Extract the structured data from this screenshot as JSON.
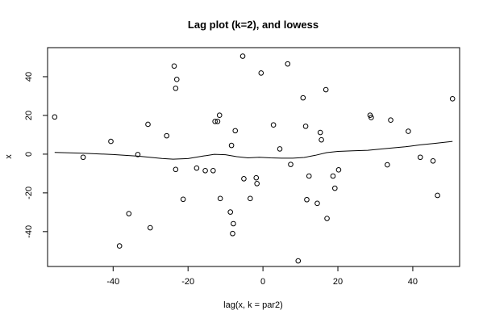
{
  "chart_data": {
    "type": "scatter",
    "title": "Lag plot (k=2), and lowess",
    "xlabel": "lag(x, k = par2)",
    "ylabel": "x",
    "xlim": [
      -57.5,
      52.5
    ],
    "ylim": [
      -58,
      55
    ],
    "xticks": [
      -40,
      -20,
      0,
      20,
      40
    ],
    "yticks": [
      -40,
      -20,
      0,
      20,
      40
    ],
    "points": [
      [
        -55.6,
        19.2
      ],
      [
        -48.0,
        -1.6
      ],
      [
        -40.6,
        6.6
      ],
      [
        -38.3,
        -47.4
      ],
      [
        -35.8,
        -30.7
      ],
      [
        -33.4,
        -0.2
      ],
      [
        -30.7,
        15.4
      ],
      [
        -30.1,
        -38.0
      ],
      [
        -25.7,
        9.5
      ],
      [
        -23.7,
        45.5
      ],
      [
        -23.3,
        34.0
      ],
      [
        -23.3,
        -7.9
      ],
      [
        -23.0,
        38.6
      ],
      [
        -21.3,
        -23.3
      ],
      [
        -17.7,
        -7.2
      ],
      [
        -15.4,
        -8.5
      ],
      [
        -13.3,
        -8.5
      ],
      [
        -12.8,
        16.9
      ],
      [
        -12.1,
        16.9
      ],
      [
        -11.6,
        20.1
      ],
      [
        -11.4,
        -22.9
      ],
      [
        -8.7,
        -29.9
      ],
      [
        -8.4,
        4.5
      ],
      [
        -8.1,
        -41.0
      ],
      [
        -7.9,
        -35.9
      ],
      [
        -7.4,
        12.1
      ],
      [
        -5.4,
        50.6
      ],
      [
        -5.1,
        -12.7
      ],
      [
        -3.4,
        -22.9
      ],
      [
        -1.8,
        -12.2
      ],
      [
        -1.6,
        -15.2
      ],
      [
        -0.5,
        41.9
      ],
      [
        2.8,
        15.1
      ],
      [
        4.5,
        2.7
      ],
      [
        6.6,
        46.6
      ],
      [
        7.4,
        -5.3
      ],
      [
        9.4,
        -55.1
      ],
      [
        10.7,
        29.1
      ],
      [
        11.4,
        14.4
      ],
      [
        11.7,
        -23.5
      ],
      [
        12.3,
        -11.3
      ],
      [
        14.5,
        -25.4
      ],
      [
        15.3,
        11.2
      ],
      [
        15.6,
        7.4
      ],
      [
        16.8,
        33.3
      ],
      [
        17.1,
        -33.2
      ],
      [
        18.7,
        -11.3
      ],
      [
        19.2,
        -17.6
      ],
      [
        20.2,
        -8.1
      ],
      [
        28.6,
        20.1
      ],
      [
        28.9,
        18.9
      ],
      [
        33.2,
        -5.5
      ],
      [
        34.1,
        17.6
      ],
      [
        38.8,
        11.8
      ],
      [
        42.0,
        -1.6
      ],
      [
        45.4,
        -3.5
      ],
      [
        46.6,
        -21.3
      ],
      [
        50.6,
        28.6
      ]
    ],
    "lowess": [
      [
        -55.6,
        0.9
      ],
      [
        -48.0,
        0.5
      ],
      [
        -40.0,
        -0.2
      ],
      [
        -33.0,
        -1.1
      ],
      [
        -27.0,
        -2.2
      ],
      [
        -24.0,
        -2.6
      ],
      [
        -20.0,
        -2.3
      ],
      [
        -16.0,
        -1.0
      ],
      [
        -13.0,
        -0.1
      ],
      [
        -10.0,
        -0.3
      ],
      [
        -7.0,
        -1.3
      ],
      [
        -4.0,
        -1.9
      ],
      [
        -1.0,
        -1.6
      ],
      [
        2.0,
        -1.9
      ],
      [
        5.0,
        -2.1
      ],
      [
        8.0,
        -2.1
      ],
      [
        11.0,
        -1.7
      ],
      [
        14.0,
        -0.6
      ],
      [
        17.0,
        0.8
      ],
      [
        20.0,
        1.4
      ],
      [
        24.0,
        1.7
      ],
      [
        28.0,
        2.0
      ],
      [
        33.0,
        2.9
      ],
      [
        38.0,
        3.8
      ],
      [
        42.0,
        4.8
      ],
      [
        46.0,
        5.6
      ],
      [
        50.6,
        6.6
      ]
    ],
    "grid": false,
    "legend": "none"
  }
}
